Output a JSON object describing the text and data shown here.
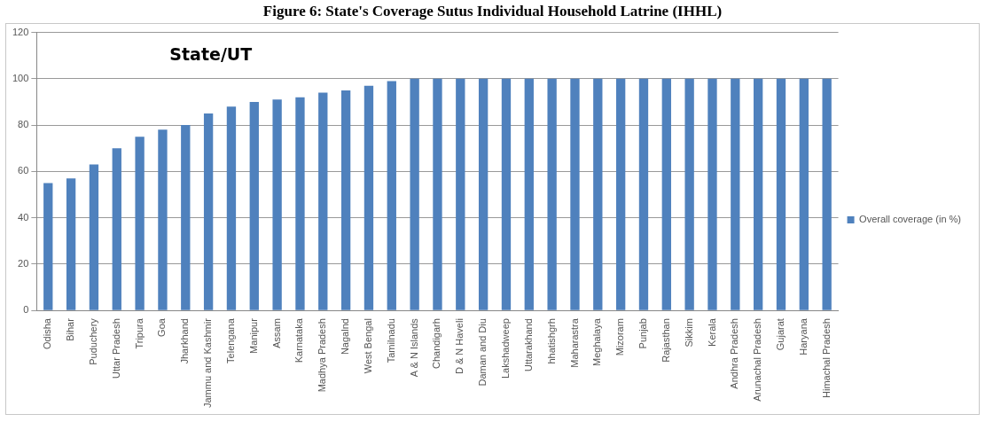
{
  "chart_data": {
    "type": "bar",
    "title": "Figure 6: State's Coverage Sutus Individual Household Latrine (IHHL)",
    "subtitle": "State/UT",
    "categories": [
      "Odisha",
      "Bihar",
      "Puduchery",
      "Uttar Pradesh",
      "Tripura",
      "Goa",
      "Jharkhand",
      "Jammu and Kashmir",
      "Telengana",
      "Manipur",
      "Assam",
      "Karnataka",
      "Madhya Pradesh",
      "Nagalnd",
      "West Bengal",
      "Tamilnadu",
      "A & N Islands",
      "Chandigarh",
      "D & N Haveli",
      "Daman and Diu",
      "Lakshadweep",
      "Uttarakhand",
      "hhatishgrh",
      "Maharastra",
      "Meghalaya",
      "Mizoram",
      "Punjab",
      "Rajasthan",
      "Sikkim",
      "Kerala",
      "Andhra Pradesh",
      "Arunachal Pradesh",
      "Gujarat",
      "Haryana",
      "Himachal Pradesh"
    ],
    "series": [
      {
        "name": "Overall coverage (in %)",
        "color": "#4f81bd",
        "values": [
          55,
          57,
          63,
          70,
          75,
          78,
          80,
          85,
          88,
          90,
          91,
          92,
          94,
          95,
          97,
          99,
          100,
          100,
          100,
          100,
          100,
          100,
          100,
          100,
          100,
          100,
          100,
          100,
          100,
          100,
          100,
          100,
          100,
          100,
          100
        ]
      }
    ],
    "ylim": [
      0,
      120
    ],
    "yticks": [
      0,
      20,
      40,
      60,
      80,
      100,
      120
    ],
    "grid": "y",
    "legend": "right"
  }
}
